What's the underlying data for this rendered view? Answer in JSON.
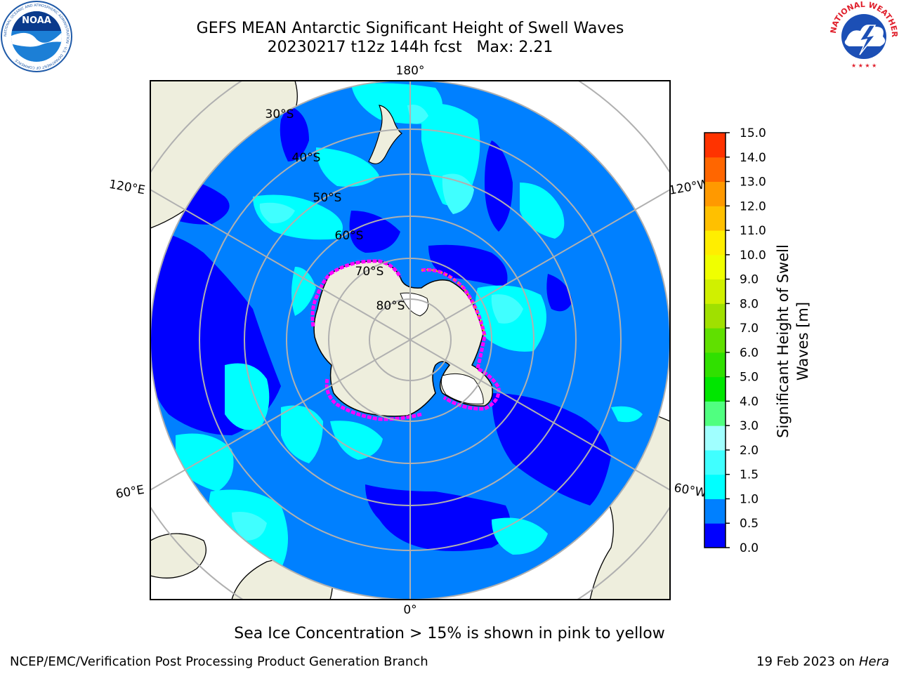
{
  "header": {
    "title_line1": "GEFS MEAN Antarctic Significant Height of Swell Waves",
    "title_line2": "20230217 t12z 144h fcst   Max: 2.21"
  },
  "logos": {
    "left": {
      "name": "NOAA",
      "ring_text": "NATIONAL OCEANIC AND ATMOSPHERIC ADMINISTRATION · U.S. DEPARTMENT OF COMMERCE"
    },
    "right": {
      "name": "NATIONAL WEATHER SERVICE"
    }
  },
  "map": {
    "projection": "south-polar-stereographic",
    "longitude_labels": {
      "top": "180°",
      "bottom": "0°",
      "upper_left": "120°E",
      "upper_right": "120°W",
      "lower_left": "60°E",
      "lower_right": "60°W"
    },
    "latitude_labels": [
      "30°S",
      "40°S",
      "50°S",
      "60°S",
      "70°S",
      "80°S"
    ],
    "colors": {
      "ocean": "#0080ff",
      "land": "#eeeedd",
      "grid": "#b0b0b0",
      "sea_ice": "#ff00ff",
      "ice_free_shelf": "#ffffff"
    }
  },
  "colorbar": {
    "label": "Significant Height of Swell Waves [m]",
    "label_line1": "Significant Height of Swell",
    "label_line2": "Waves [m]",
    "ticks": [
      "0.0",
      "0.5",
      "1.0",
      "1.5",
      "2.0",
      "3.0",
      "4.0",
      "5.0",
      "6.0",
      "7.0",
      "8.0",
      "9.0",
      "10.0",
      "11.0",
      "12.0",
      "13.0",
      "14.0",
      "15.0"
    ],
    "colors": [
      "#0000ff",
      "#0080ff",
      "#00ffff",
      "#40ffff",
      "#a0ffff",
      "#50ff80",
      "#00e600",
      "#30e000",
      "#60e000",
      "#a0e000",
      "#d0f000",
      "#f0ff00",
      "#ffee00",
      "#ffc000",
      "#ff9900",
      "#ff6600",
      "#ff3300",
      "#ff0000"
    ]
  },
  "footer": {
    "note": "Sea Ice Concentration > 15% is shown in pink to yellow",
    "credit": "NCEP/EMC/Verification Post Processing Product Generation Branch",
    "date": "19 Feb 2023 on",
    "host": "Hera"
  }
}
